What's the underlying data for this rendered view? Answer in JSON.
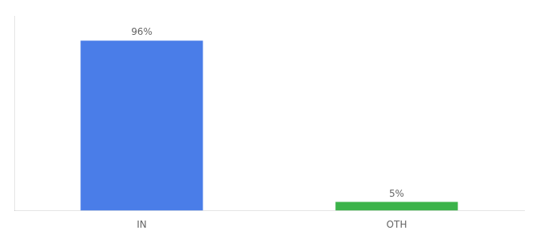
{
  "chart_data": {
    "type": "bar",
    "categories": [
      "IN",
      "OTH"
    ],
    "values": [
      96,
      5
    ],
    "value_labels": [
      "96%",
      "5%"
    ],
    "colors": [
      "#4a7de8",
      "#3cb34a"
    ],
    "ylim": [
      0,
      110
    ],
    "data_labels": true,
    "tick_labels": "x",
    "grid": false
  }
}
